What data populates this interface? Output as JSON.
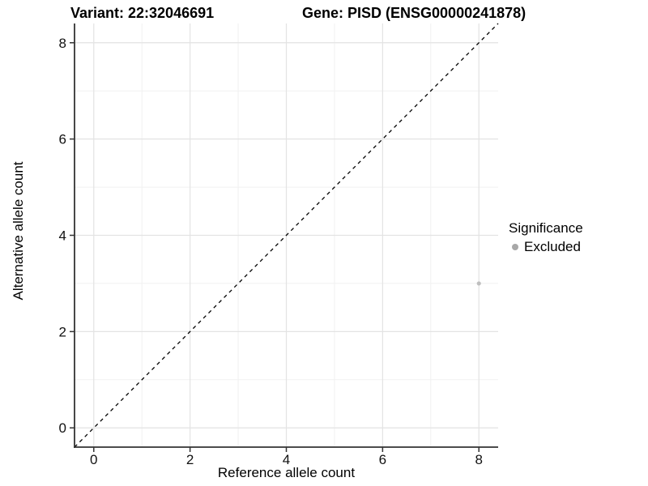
{
  "figure": {
    "title_left": "Variant: 22:32046691",
    "title_right": "Gene: PISD (ENSG00000241878)"
  },
  "chart_data": {
    "type": "scatter",
    "xlabel": "Reference allele count",
    "ylabel": "Alternative allele count",
    "xlim": [
      -0.4,
      8.4
    ],
    "ylim": [
      -0.4,
      8.4
    ],
    "xticks": [
      0,
      2,
      4,
      6,
      8
    ],
    "yticks": [
      0,
      2,
      4,
      6,
      8
    ],
    "xticks_minor": [
      1,
      3,
      5,
      7
    ],
    "yticks_minor": [
      1,
      3,
      5,
      7
    ],
    "grid": "major+minor",
    "reference_line": {
      "type": "identity y=x",
      "style": "dashed",
      "color": "#000000"
    },
    "series": [
      {
        "name": "Excluded",
        "color": "#bfbfbf",
        "points": [
          [
            8,
            3
          ]
        ]
      }
    ],
    "legend": {
      "title": "Significance",
      "position": "right",
      "items": [
        {
          "label": "Excluded",
          "color": "#a8a8a8"
        }
      ]
    }
  },
  "colors": {
    "background": "#ffffff",
    "grid_major": "#e3e3e3",
    "grid_minor": "#f1f1f1",
    "axis_line": "#333333",
    "tick": "#333333",
    "tick_label": "#111111",
    "title": "#000000"
  }
}
